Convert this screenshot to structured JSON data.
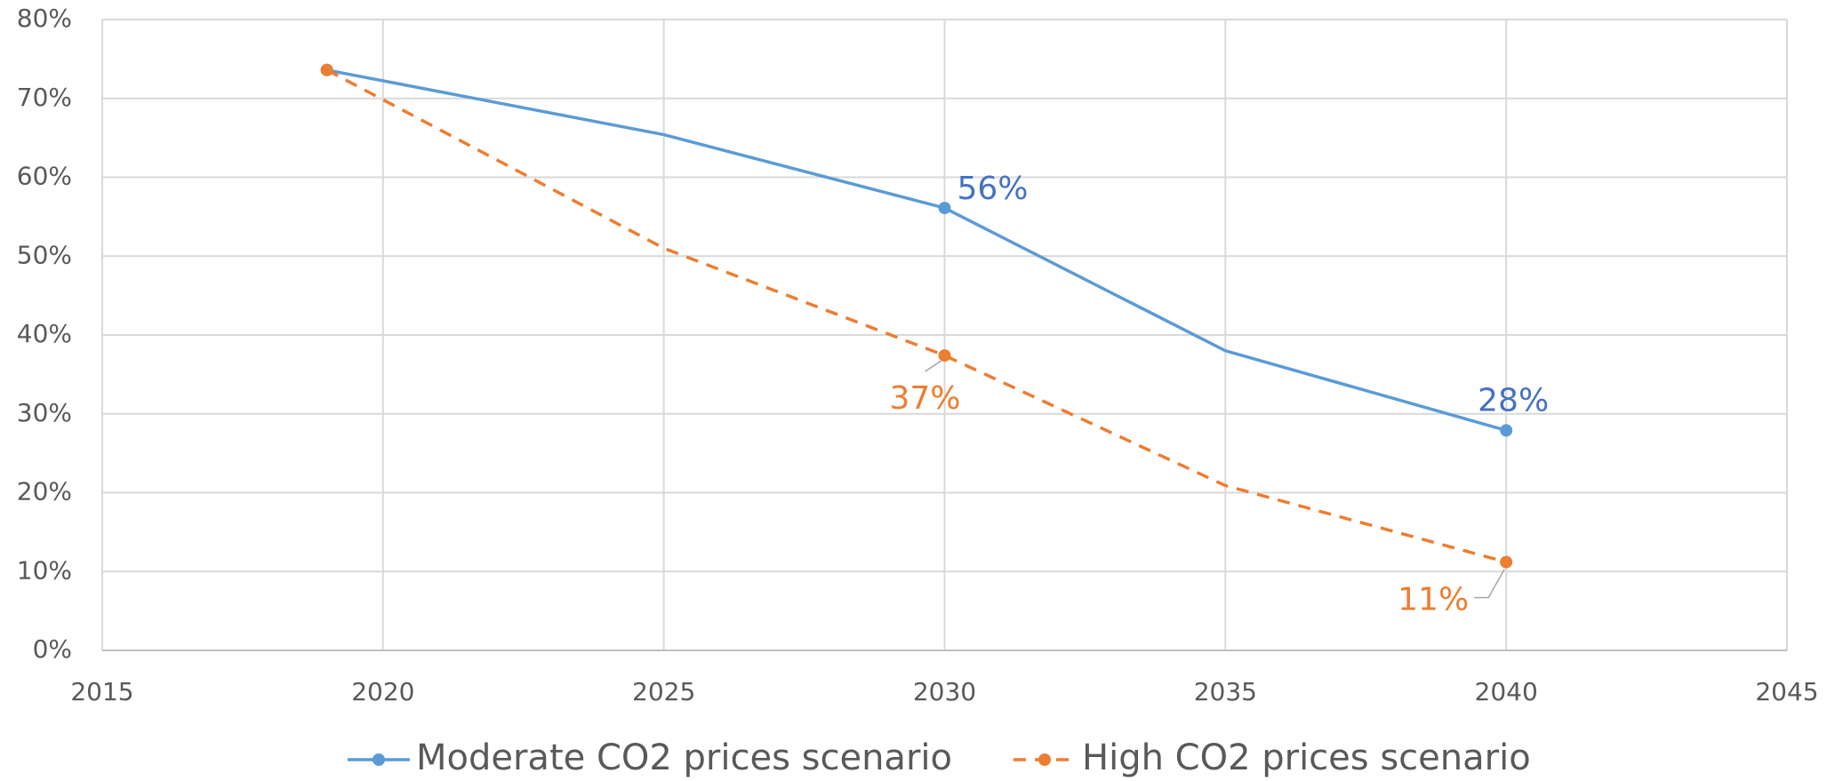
{
  "chart_data": {
    "type": "line",
    "x": [
      2019,
      2025,
      2030,
      2035,
      2040
    ],
    "series": [
      {
        "name": "Moderate CO2 prices scenario",
        "color": "#5b9bd5",
        "label_color": "#4472c4",
        "dash": false,
        "values": [
          73.6,
          65.4,
          56.1,
          38,
          27.9
        ],
        "markers": [
          true,
          false,
          true,
          false,
          true
        ],
        "value_labels": [
          null,
          null,
          "56%",
          null,
          "28%"
        ]
      },
      {
        "name": "High CO2 prices scenario",
        "color": "#ed7d31",
        "label_color": "#ed7d31",
        "dash": true,
        "values": [
          73.6,
          51,
          37.4,
          20.9,
          11.2
        ],
        "markers": [
          true,
          false,
          true,
          false,
          true
        ],
        "value_labels": [
          null,
          null,
          "37%",
          null,
          "11%"
        ]
      }
    ],
    "xlim": [
      2015,
      2045
    ],
    "xticks": [
      2015,
      2020,
      2025,
      2030,
      2035,
      2040,
      2045
    ],
    "ylim": [
      0,
      80
    ],
    "yticks": [
      {
        "value": 0,
        "label": "0%"
      },
      {
        "value": 10,
        "label": "10%"
      },
      {
        "value": 20,
        "label": "20%"
      },
      {
        "value": 30,
        "label": "30%"
      },
      {
        "value": 40,
        "label": "40%"
      },
      {
        "value": 50,
        "label": "50%"
      },
      {
        "value": 60,
        "label": "60%"
      },
      {
        "value": 70,
        "label": "70%"
      },
      {
        "value": 80,
        "label": "80%"
      }
    ],
    "grid": true,
    "legend": "bottom"
  }
}
